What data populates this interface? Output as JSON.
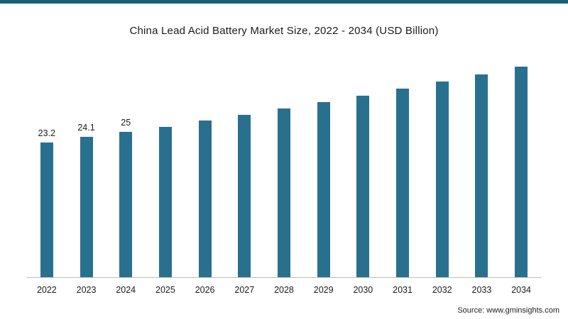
{
  "accent_color": "#155e75",
  "chart_data": {
    "type": "bar",
    "title": "China Lead Acid Battery Market Size, 2022 - 2034 (USD Billion)",
    "xlabel": "",
    "ylabel": "USD Billion",
    "ylim": [
      0,
      38
    ],
    "grid": false,
    "legend": "none",
    "bar_color": "#29708f",
    "categories": [
      "2022",
      "2023",
      "2024",
      "2025",
      "2026",
      "2027",
      "2028",
      "2029",
      "2030",
      "2031",
      "2032",
      "2033",
      "2034"
    ],
    "values": [
      23.2,
      24.1,
      25,
      25.9,
      26.9,
      27.9,
      29.0,
      30.1,
      31.2,
      32.4,
      33.6,
      34.9,
      36.2
    ],
    "data_labels": [
      "23.2",
      "24.1",
      "25",
      "",
      "",
      "",
      "",
      "",
      "",
      "",
      "",
      "",
      ""
    ]
  },
  "source": {
    "text": "Source: www.gminsights.com"
  }
}
